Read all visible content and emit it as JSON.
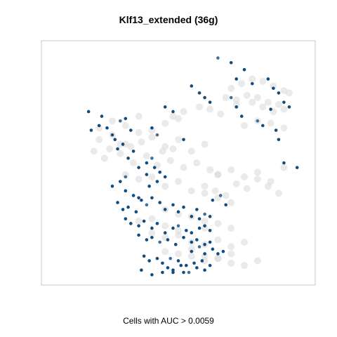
{
  "chart_data": {
    "type": "scatter",
    "title": "Klf13_extended (36g)",
    "xlabel": "Cells with AUC > 0.0059",
    "ylabel": "",
    "axes_shown": false,
    "grid": false,
    "legend": "none",
    "colors": {
      "background_points": "#d9d9d9",
      "highlight_points": "#0f4c81",
      "highlight_mid": "#3f6f9e",
      "frame": "#c8c8c8"
    },
    "xlim": [
      0,
      100
    ],
    "ylim": [
      0,
      100
    ],
    "series": [
      {
        "role": "background",
        "x": [
          20,
          25,
          30,
          35,
          40,
          45,
          50,
          55,
          60,
          18,
          22,
          28,
          33,
          38,
          42,
          47,
          52,
          57,
          62,
          65,
          30,
          35,
          40,
          45,
          50,
          55,
          60,
          65,
          70,
          45,
          50,
          55,
          60,
          65,
          70,
          40,
          45,
          50,
          55,
          60,
          65,
          70,
          75,
          55,
          60,
          65,
          70,
          75,
          80,
          45,
          50,
          55,
          60,
          65,
          70,
          35,
          40,
          45,
          50,
          60,
          48,
          52,
          58,
          62,
          66,
          72,
          78,
          82,
          86,
          90,
          70,
          74,
          78,
          82,
          86,
          90,
          92,
          68,
          72,
          76,
          80,
          84,
          88,
          75,
          80,
          85,
          90,
          65,
          70,
          75,
          80,
          85,
          90,
          60,
          64,
          68,
          72,
          76,
          80,
          84,
          88,
          20,
          25,
          30,
          35,
          40,
          45,
          50,
          24,
          28,
          32,
          36,
          44,
          48
        ],
        "y": [
          60,
          62,
          58,
          63,
          61,
          57,
          60,
          55,
          58,
          55,
          52,
          54,
          50,
          53,
          49,
          51,
          48,
          50,
          47,
          45,
          45,
          43,
          44,
          40,
          42,
          38,
          37,
          35,
          33,
          30,
          28,
          27,
          25,
          24,
          22,
          20,
          18,
          19,
          16,
          15,
          17,
          14,
          16,
          10,
          8,
          9,
          7,
          6,
          8,
          12,
          11,
          13,
          10,
          9,
          11,
          25,
          26,
          23,
          21,
          22,
          70,
          72,
          74,
          73,
          71,
          75,
          76,
          74,
          72,
          73,
          82,
          84,
          86,
          85,
          83,
          81,
          80,
          78,
          77,
          79,
          78,
          76,
          75,
          66,
          68,
          67,
          65,
          45,
          47,
          44,
          46,
          42,
          48,
          40,
          38,
          36,
          41,
          39,
          43,
          40,
          37,
          65,
          68,
          66,
          70,
          64,
          67,
          69,
          56,
          58,
          57,
          59,
          55,
          56
        ]
      },
      {
        "role": "highlighted",
        "x": [
          65,
          70,
          75,
          72,
          78,
          55,
          58,
          60,
          62,
          70,
          72,
          74,
          84,
          86,
          88,
          85,
          90,
          92,
          80,
          82,
          87,
          88,
          90,
          95,
          45,
          48,
          40,
          42,
          52,
          17,
          20,
          16,
          21,
          23,
          25,
          26,
          28,
          30,
          32,
          27,
          29,
          33,
          31,
          35,
          38,
          40,
          41,
          43,
          45,
          42,
          38,
          39,
          25,
          28,
          30,
          30,
          33,
          35,
          27,
          29,
          31,
          34,
          36,
          38,
          40,
          43,
          45,
          48,
          50,
          52,
          55,
          57,
          60,
          30,
          32,
          35,
          37,
          40,
          42,
          45,
          48,
          50,
          53,
          55,
          58,
          60,
          62,
          35,
          38,
          40,
          43,
          46,
          49,
          52,
          55,
          57,
          60,
          62,
          55,
          58,
          60,
          63,
          65,
          67,
          37,
          39,
          42,
          44,
          47,
          50,
          53,
          56,
          59,
          62,
          46,
          48,
          51,
          54,
          57,
          60,
          36,
          40,
          44,
          48,
          52,
          63,
          66,
          68,
          58,
          62
        ],
        "y": [
          95,
          93,
          90,
          86,
          84,
          83,
          80,
          78,
          76,
          78,
          74,
          70,
          86,
          82,
          80,
          73,
          76,
          74,
          68,
          66,
          64,
          60,
          50,
          48,
          74,
          72,
          65,
          62,
          60,
          64,
          66,
          72,
          70,
          65,
          62,
          60,
          68,
          69,
          64,
          56,
          58,
          55,
          52,
          48,
          50,
          52,
          48,
          46,
          44,
          42,
          45,
          40,
          40,
          42,
          44,
          38,
          36,
          35,
          33,
          30,
          31,
          29,
          34,
          32,
          35,
          33,
          30,
          32,
          29,
          31,
          27,
          30,
          28,
          26,
          24,
          23,
          25,
          22,
          24,
          20,
          22,
          23,
          21,
          20,
          22,
          23,
          21,
          19,
          17,
          18,
          16,
          17,
          15,
          18,
          16,
          17,
          15,
          16,
          12,
          14,
          11,
          13,
          11,
          12,
          10,
          8,
          9,
          7,
          9,
          8,
          6,
          7,
          8,
          6,
          5,
          4,
          6,
          3,
          5,
          4,
          4,
          2,
          3,
          3,
          3,
          34,
          36,
          32,
          26,
          27
        ]
      }
    ]
  }
}
